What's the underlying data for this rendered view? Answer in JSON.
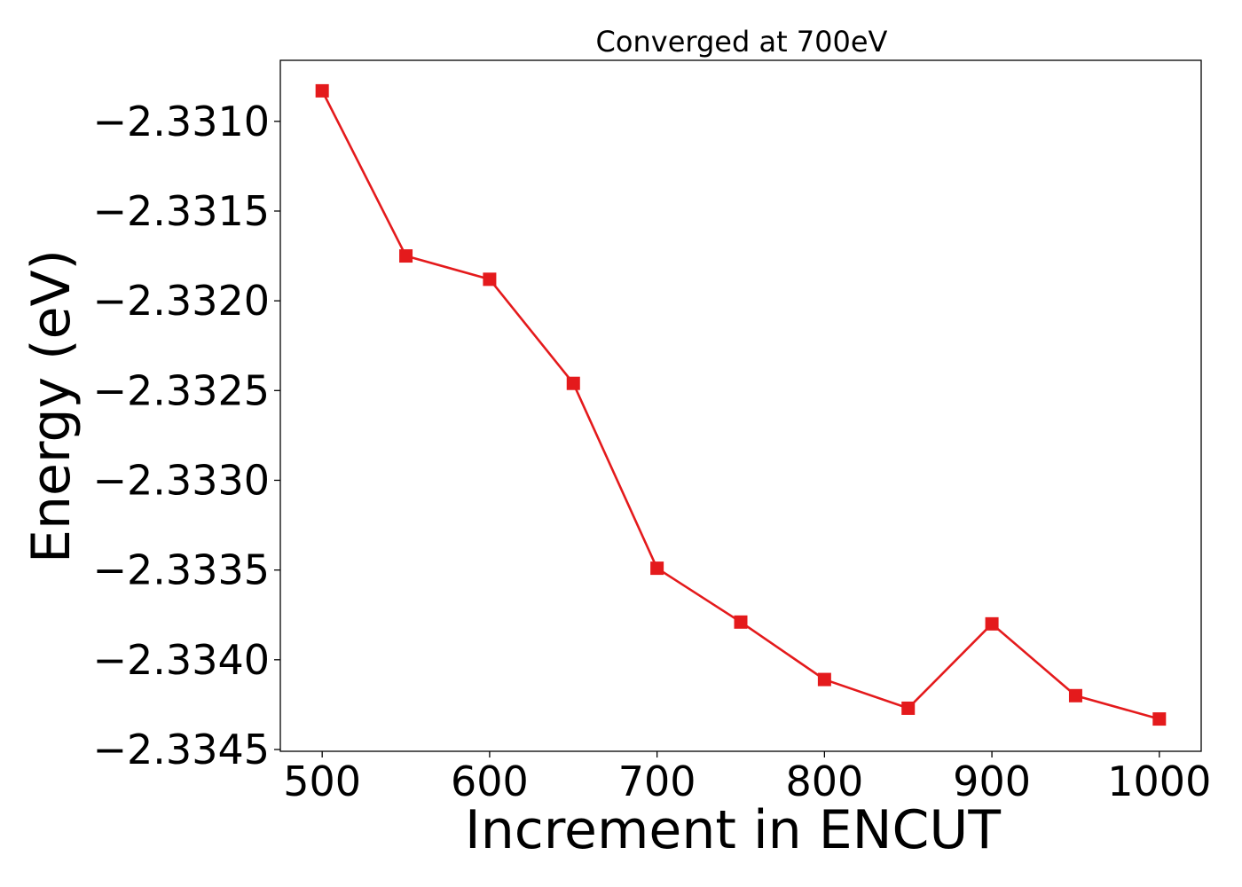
{
  "chart_data": {
    "type": "line",
    "title": "Converged at 700eV",
    "xlabel": "Increment in ENCUT",
    "ylabel": "Energy (eV)",
    "x": [
      500,
      550,
      600,
      650,
      700,
      750,
      800,
      850,
      900,
      950,
      1000
    ],
    "series": [
      {
        "values": [
          -2.33083,
          -2.33175,
          -2.33188,
          -2.33246,
          -2.33349,
          -2.33379,
          -2.33411,
          -2.33427,
          -2.3338,
          -2.3342,
          -2.33433
        ],
        "color": "#e41a1c",
        "marker": "square"
      }
    ],
    "xticks": [
      500,
      600,
      700,
      800,
      900,
      1000
    ],
    "xtick_labels": [
      "500",
      "600",
      "700",
      "800",
      "900",
      "1000"
    ],
    "yticks": [
      -2.331,
      -2.3315,
      -2.332,
      -2.3325,
      -2.333,
      -2.3335,
      -2.334,
      -2.3345
    ],
    "ytick_labels": [
      "−2.3310",
      "−2.3315",
      "−2.3320",
      "−2.3325",
      "−2.3330",
      "−2.3335",
      "−2.3340",
      "−2.3345"
    ],
    "xlim": [
      475,
      1025
    ],
    "ylim": [
      -2.33451,
      -2.33066
    ],
    "grid": false,
    "legend": "none"
  }
}
